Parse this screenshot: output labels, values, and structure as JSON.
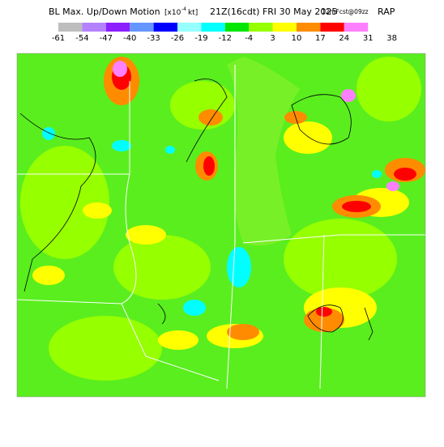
{
  "header": {
    "title_left": "BL Max. Up/Down Motion",
    "unit_open": "[x10",
    "unit_exp": "-4",
    "unit_close": "kt]",
    "time": "21Z(16cdt) FRI 30 May 2025",
    "forecast": "12hrFcst@09zz",
    "model": "RAP"
  },
  "colorbar": {
    "labels": [
      -61,
      -54,
      -47,
      -40,
      -33,
      -26,
      -19,
      -12,
      -4,
      3,
      10,
      17,
      24,
      31,
      38
    ],
    "colors": [
      "#bebebe",
      "#b482ff",
      "#8c1eff",
      "#6496ff",
      "#0000ff",
      "#96ffff",
      "#00ffff",
      "#00e600",
      "#96ff00",
      "#ffff00",
      "#ff8c00",
      "#ff0000",
      "#ff80ff"
    ]
  }
}
